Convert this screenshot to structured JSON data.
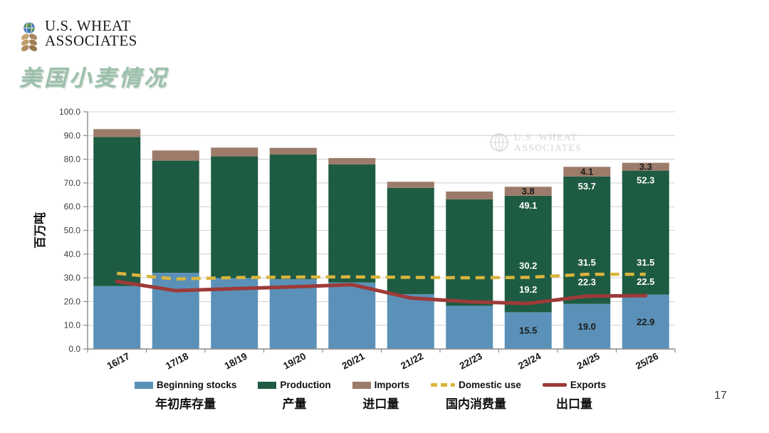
{
  "header": {
    "logo_line1": "U.S. WHEAT",
    "logo_line2": "ASSOCIATES",
    "title": "美国小麦情况"
  },
  "watermark": {
    "line1": "U.S. WHEAT",
    "line2": "ASSOCIATES"
  },
  "footer": {
    "page_number": "17"
  },
  "colors": {
    "title_green": "#9cc0ab",
    "beginning_stocks_blue": "#5b91b8",
    "production_green": "#1e5b43",
    "imports_brown": "#9c7b6a",
    "domestic_use_yellow": "#d9b53c",
    "exports_red": "#9e3a38",
    "gridline": "#d4d4d4",
    "axis": "#8a8a8a"
  },
  "chart_data": {
    "type": "combo: stacked bar + line",
    "title": "美国小麦情况",
    "ylabel": "百万吨",
    "xlabel": "",
    "ylim": [
      0,
      100
    ],
    "ytick_step": 10,
    "ytick_decimals": 1,
    "grid": true,
    "legend_position": "bottom",
    "categories": [
      "16/17",
      "17/18",
      "18/19",
      "19/20",
      "20/21",
      "21/22",
      "22/23",
      "23/24",
      "24/25",
      "25/26"
    ],
    "series": [
      {
        "name": "Beginning stocks",
        "name_zh": "年初库存量",
        "type": "bar",
        "color": "#5b91b8",
        "values": [
          26.5,
          32.1,
          29.9,
          29.4,
          28.0,
          23.1,
          18.2,
          15.5,
          19.0,
          22.9
        ],
        "labels": [
          null,
          null,
          null,
          null,
          null,
          null,
          null,
          "15.5",
          "19.0",
          "22.9"
        ],
        "label_color": "#1a1a1a",
        "label_placement": "segment-center"
      },
      {
        "name": "Production",
        "name_zh": "产量",
        "type": "bar",
        "color": "#1e5b43",
        "values": [
          62.9,
          47.3,
          51.3,
          52.6,
          49.8,
          44.8,
          44.9,
          49.1,
          53.7,
          52.3
        ],
        "labels": [
          null,
          null,
          null,
          null,
          null,
          null,
          null,
          "49.1",
          "53.7",
          "52.3"
        ],
        "label_color": "#ffffff",
        "label_placement": "segment-top"
      },
      {
        "name": "Imports",
        "name_zh": "进口量",
        "type": "bar",
        "color": "#9c7b6a",
        "values": [
          3.3,
          4.3,
          3.7,
          2.8,
          2.7,
          2.6,
          3.3,
          3.8,
          4.1,
          3.3
        ],
        "labels": [
          null,
          null,
          null,
          null,
          null,
          null,
          null,
          "3.8",
          "4.1",
          "3.3"
        ],
        "label_color": "#1a1a1a",
        "label_placement": "segment-center"
      },
      {
        "name": "Domestic use",
        "name_zh": "国内消费量",
        "type": "line-dashed",
        "color": "#d9b53c",
        "values": [
          31.9,
          29.5,
          30.1,
          30.3,
          30.4,
          30.2,
          30.0,
          30.2,
          31.5,
          31.5
        ],
        "labels": [
          null,
          null,
          null,
          null,
          null,
          null,
          null,
          "30.2",
          "31.5",
          "31.5"
        ],
        "label_color": "#ffffff",
        "label_placement": "above-line"
      },
      {
        "name": "Exports",
        "name_zh": "出口量",
        "type": "line",
        "color": "#9e3a38",
        "values": [
          28.5,
          24.6,
          25.4,
          26.2,
          27.1,
          21.5,
          19.9,
          19.2,
          22.3,
          22.5
        ],
        "labels": [
          null,
          null,
          null,
          null,
          null,
          null,
          null,
          "19.2",
          "22.3",
          "22.5"
        ],
        "label_color": "#ffffff",
        "label_placement": "above-line"
      }
    ]
  }
}
